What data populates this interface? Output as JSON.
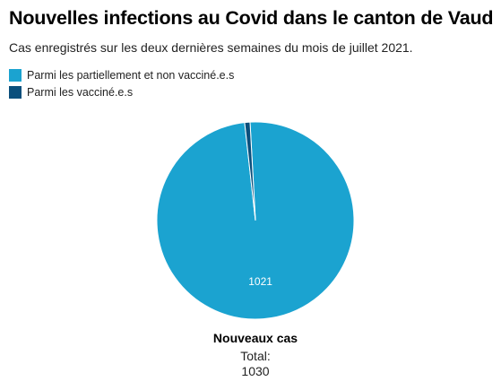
{
  "title": "Nouvelles infections au Covid dans le canton de Vaud",
  "subtitle": "Cas enregistrés sur les deux dernières semaines du mois de juillet 2021.",
  "chart_data": {
    "type": "pie",
    "title": "Nouvelles infections au Covid dans le canton de Vaud",
    "subtitle": "Cas enregistrés sur les deux dernières semaines du mois de juillet 2021.",
    "legend_position": "top-left",
    "slices": [
      {
        "label": "Parmi les partiellement et non vacciné.e.s",
        "value": 1021,
        "color": "#1ba3d0",
        "show_label": true
      },
      {
        "label": "Parmi les vacciné.e.s",
        "value": 9,
        "color": "#0a4f7c",
        "show_label": false
      }
    ],
    "series_name": "Nouveaux cas",
    "total_label": "Total:",
    "total_value": "1030"
  }
}
